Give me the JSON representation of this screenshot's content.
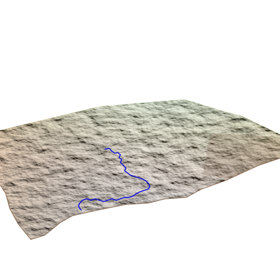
{
  "scene": {
    "background_color": "#ffffff",
    "elevation_colormap": [
      "#8b5a34",
      "#c77a3c",
      "#ef8a2a",
      "#f3b12a",
      "#f5e01e",
      "#d7f21a",
      "#86e81a"
    ],
    "river_color": "#0a0ad8",
    "shading": "hillshade"
  }
}
